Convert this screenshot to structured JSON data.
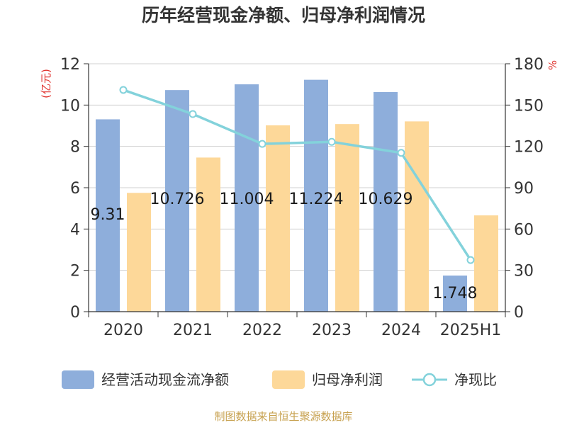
{
  "chart_data": {
    "type": "bar",
    "title": "历年经营现金净额、归母净利润情况",
    "categories": [
      "2020",
      "2021",
      "2022",
      "2023",
      "2024",
      "2025H1"
    ],
    "y_left": {
      "label": "(亿元)",
      "ticks": [
        "0",
        "2",
        "4",
        "6",
        "8",
        "10",
        "12"
      ],
      "ylim": [
        0,
        12
      ]
    },
    "y_right": {
      "label": "%",
      "ticks": [
        "0",
        "30",
        "60",
        "90",
        "120",
        "150",
        "180"
      ],
      "ylim": [
        0,
        180
      ]
    },
    "series": [
      {
        "name": "经营活动现金流净额",
        "type": "bar",
        "color": "#8eaedb",
        "values": [
          9.31,
          10.726,
          11.004,
          11.224,
          10.629,
          1.748
        ],
        "labels": [
          "9.31",
          "10.726",
          "11.004",
          "11.224",
          "10.629",
          "1.748"
        ]
      },
      {
        "name": "归母净利润",
        "type": "bar",
        "color": "#fdd899",
        "values": [
          5.75,
          7.46,
          9.02,
          9.08,
          9.21,
          4.66
        ]
      },
      {
        "name": "净现比",
        "type": "line",
        "axis": "right",
        "color": "#83d2db",
        "values": [
          161,
          143.5,
          121.8,
          123.3,
          115.3,
          37.5
        ]
      }
    ],
    "legend_position": "bottom",
    "grid": true
  },
  "footer": {
    "source": "制图数据来自恒生聚源数据库"
  },
  "colors": {
    "title": "#333333",
    "axis_label": "#e0322d",
    "source": "#c7a14f",
    "grid": "#d0d0d0"
  }
}
